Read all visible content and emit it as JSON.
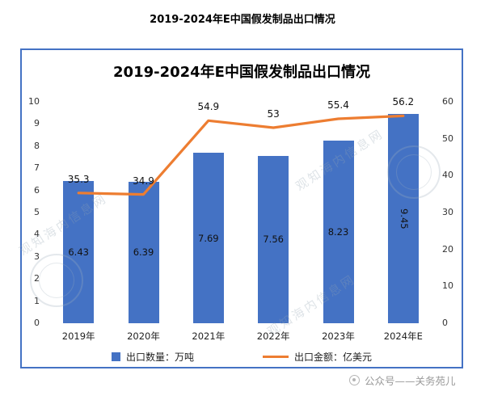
{
  "page": {
    "title": "2019-2024年E中国假发制品出口情况",
    "footer": {
      "icon": "wechat-official-account-icon",
      "text": "公众号——关务苑儿"
    }
  },
  "watermark": {
    "text": "观知海内信息网"
  },
  "chart_data": {
    "type": "bar",
    "title": "2019-2024年E中国假发制品出口情况",
    "categories": [
      "2019年",
      "2020年",
      "2021年",
      "2022年",
      "2023年",
      "2024年E"
    ],
    "series": [
      {
        "name": "出口数量：万吨",
        "type": "bar",
        "axis": "left",
        "color": "#4472C4",
        "values": [
          6.43,
          6.39,
          7.69,
          7.56,
          8.23,
          9.45
        ]
      },
      {
        "name": "出口金额：亿美元",
        "type": "line",
        "axis": "right",
        "color": "#ED7D31",
        "values": [
          35.3,
          34.9,
          54.9,
          53,
          55.4,
          56.2
        ]
      }
    ],
    "left_axis": {
      "min": 0,
      "max": 10,
      "step": 1
    },
    "right_axis": {
      "min": 0,
      "max": 60,
      "step": 10
    },
    "grid": false,
    "legend_position": "bottom",
    "layout": {
      "last_bar_label_vertical": true
    }
  }
}
